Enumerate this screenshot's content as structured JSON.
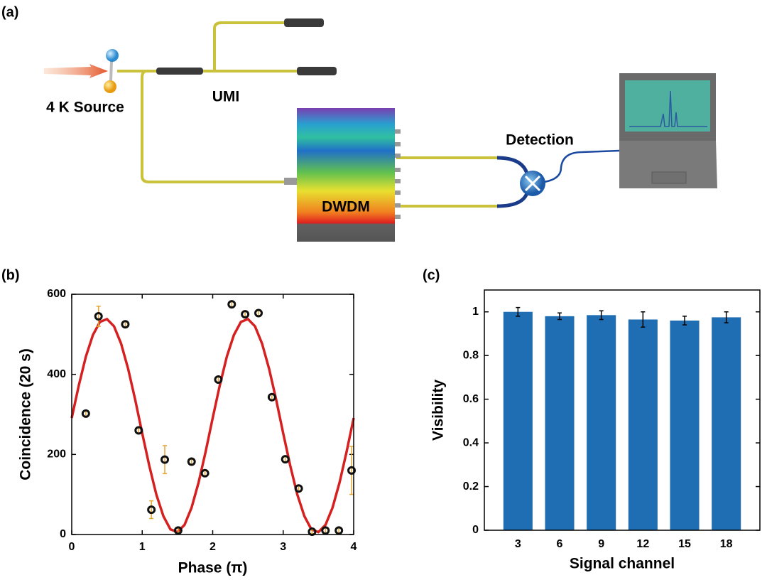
{
  "panels": [
    "(a)",
    "(b)",
    "(c)"
  ],
  "diagram": {
    "source": "4 K Source",
    "interferometer": "UMI",
    "demux": "DWDM",
    "detection": "Detection"
  },
  "chart_data": [
    {
      "type": "scatter",
      "xlabel": "Phase (π)",
      "ylabel": "Coincidence (20 s)",
      "xlim": [
        0,
        4
      ],
      "xticks": [
        0,
        1,
        2,
        3,
        4
      ],
      "ylim": [
        0,
        600
      ],
      "yticks": [
        0,
        200,
        400,
        600
      ],
      "series": [
        {
          "type": "scatter",
          "color": "#111111",
          "error_color": "#e6a532",
          "x": [
            0.2,
            0.38,
            0.76,
            0.95,
            1.13,
            1.32,
            1.51,
            1.7,
            1.89,
            2.08,
            2.27,
            2.46,
            2.65,
            2.84,
            3.03,
            3.22,
            3.41,
            3.6,
            3.79,
            3.97
          ],
          "values": [
            302,
            545,
            525,
            260,
            62,
            187,
            10,
            182,
            153,
            387,
            575,
            550,
            553,
            343,
            188,
            115,
            7,
            10,
            10,
            160
          ],
          "errors": [
            8,
            25,
            8,
            8,
            22,
            35,
            5,
            8,
            8,
            8,
            8,
            8,
            8,
            8,
            8,
            8,
            5,
            8,
            8,
            60
          ]
        },
        {
          "type": "line",
          "color": "#d62020",
          "x": [
            0,
            0.1,
            0.2,
            0.3,
            0.4,
            0.5,
            0.6,
            0.7,
            0.8,
            0.9,
            1,
            1.1,
            1.2,
            1.3,
            1.4,
            1.5,
            1.6,
            1.7,
            1.8,
            1.9,
            2,
            2.1,
            2.2,
            2.3,
            2.4,
            2.5,
            2.6,
            2.7,
            2.8,
            2.9,
            3,
            3.1,
            3.2,
            3.3,
            3.4,
            3.5,
            3.6,
            3.7,
            3.8,
            3.9,
            4
          ],
          "values": [
            291,
            372,
            444,
            498,
            531,
            538,
            520,
            477,
            414,
            337,
            253,
            172,
            100,
            46,
            13,
            6,
            24,
            67,
            130,
            207,
            291,
            372,
            444,
            498,
            531,
            538,
            520,
            477,
            414,
            337,
            253,
            172,
            100,
            46,
            13,
            6,
            24,
            67,
            130,
            207,
            291
          ]
        }
      ]
    },
    {
      "type": "bar",
      "xlabel": "Signal channel",
      "ylabel": "Visibility",
      "color": "#1f6db2",
      "error_color": "#000000",
      "categories": [
        "3",
        "6",
        "9",
        "12",
        "15",
        "18"
      ],
      "values": [
        1.0,
        0.98,
        0.985,
        0.965,
        0.96,
        0.975
      ],
      "errors": [
        0.02,
        0.015,
        0.02,
        0.035,
        0.02,
        0.025
      ],
      "ylim": [
        0,
        1.1
      ],
      "yticks": [
        0,
        0.2,
        0.4,
        0.6,
        0.8,
        1
      ]
    }
  ]
}
